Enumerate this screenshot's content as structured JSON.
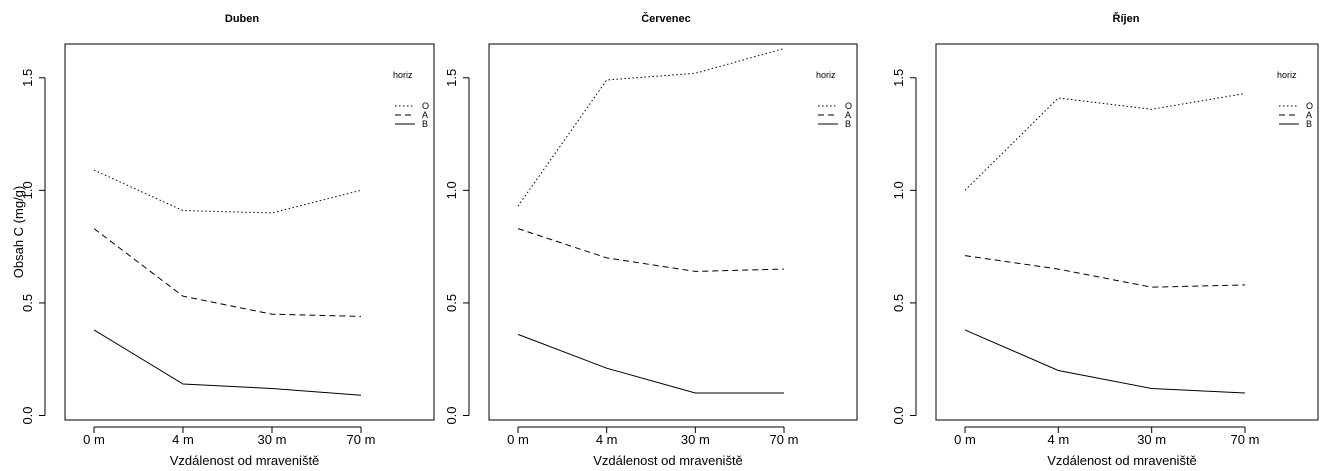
{
  "chart_data": [
    {
      "type": "line",
      "title": "Duben",
      "xlabel": "Vzdálenost od mraveniště",
      "ylabel": "Obsah C (mg/g)",
      "categories": [
        "0 m",
        "4 m",
        "30 m",
        "70 m"
      ],
      "ylim": [
        -0.02,
        1.65
      ],
      "yticks": [
        "0.0",
        "0.5",
        "1.0",
        "1.5"
      ],
      "grid": false,
      "legend": {
        "title": "horiz",
        "position": "top-right",
        "entries": [
          "O",
          "A",
          "B"
        ]
      },
      "series": [
        {
          "name": "O",
          "dash": "dotted",
          "values": [
            1.09,
            0.91,
            0.9,
            1.0
          ]
        },
        {
          "name": "A",
          "dash": "dashed",
          "values": [
            0.83,
            0.53,
            0.45,
            0.44
          ]
        },
        {
          "name": "B",
          "dash": "solid",
          "values": [
            0.38,
            0.14,
            0.12,
            0.09
          ]
        }
      ]
    },
    {
      "type": "line",
      "title": "Červenec",
      "xlabel": "Vzdálenost od mraveniště",
      "ylabel": "",
      "categories": [
        "0 m",
        "4 m",
        "30 m",
        "70 m"
      ],
      "ylim": [
        -0.02,
        1.65
      ],
      "yticks": [
        "0.0",
        "0.5",
        "1.0",
        "1.5"
      ],
      "grid": false,
      "legend": {
        "title": "horiz",
        "position": "top-right",
        "entries": [
          "O",
          "A",
          "B"
        ]
      },
      "series": [
        {
          "name": "O",
          "dash": "dotted",
          "values": [
            0.93,
            1.49,
            1.52,
            1.63
          ]
        },
        {
          "name": "A",
          "dash": "dashed",
          "values": [
            0.83,
            0.7,
            0.64,
            0.65
          ]
        },
        {
          "name": "B",
          "dash": "solid",
          "values": [
            0.36,
            0.21,
            0.1,
            0.1
          ]
        }
      ]
    },
    {
      "type": "line",
      "title": "Říjen",
      "xlabel": "Vzdálenost od mraveniště",
      "ylabel": "",
      "categories": [
        "0 m",
        "4 m",
        "30 m",
        "70 m"
      ],
      "ylim": [
        -0.02,
        1.65
      ],
      "yticks": [
        "0.0",
        "0.5",
        "1.0",
        "1.5"
      ],
      "grid": false,
      "legend": {
        "title": "horiz",
        "position": "top-right",
        "entries": [
          "O",
          "A",
          "B"
        ]
      },
      "series": [
        {
          "name": "O",
          "dash": "dotted",
          "values": [
            1.0,
            1.41,
            1.36,
            1.43
          ]
        },
        {
          "name": "A",
          "dash": "dashed",
          "values": [
            0.71,
            0.65,
            0.57,
            0.58
          ]
        },
        {
          "name": "B",
          "dash": "solid",
          "values": [
            0.38,
            0.2,
            0.12,
            0.1
          ]
        }
      ]
    }
  ]
}
